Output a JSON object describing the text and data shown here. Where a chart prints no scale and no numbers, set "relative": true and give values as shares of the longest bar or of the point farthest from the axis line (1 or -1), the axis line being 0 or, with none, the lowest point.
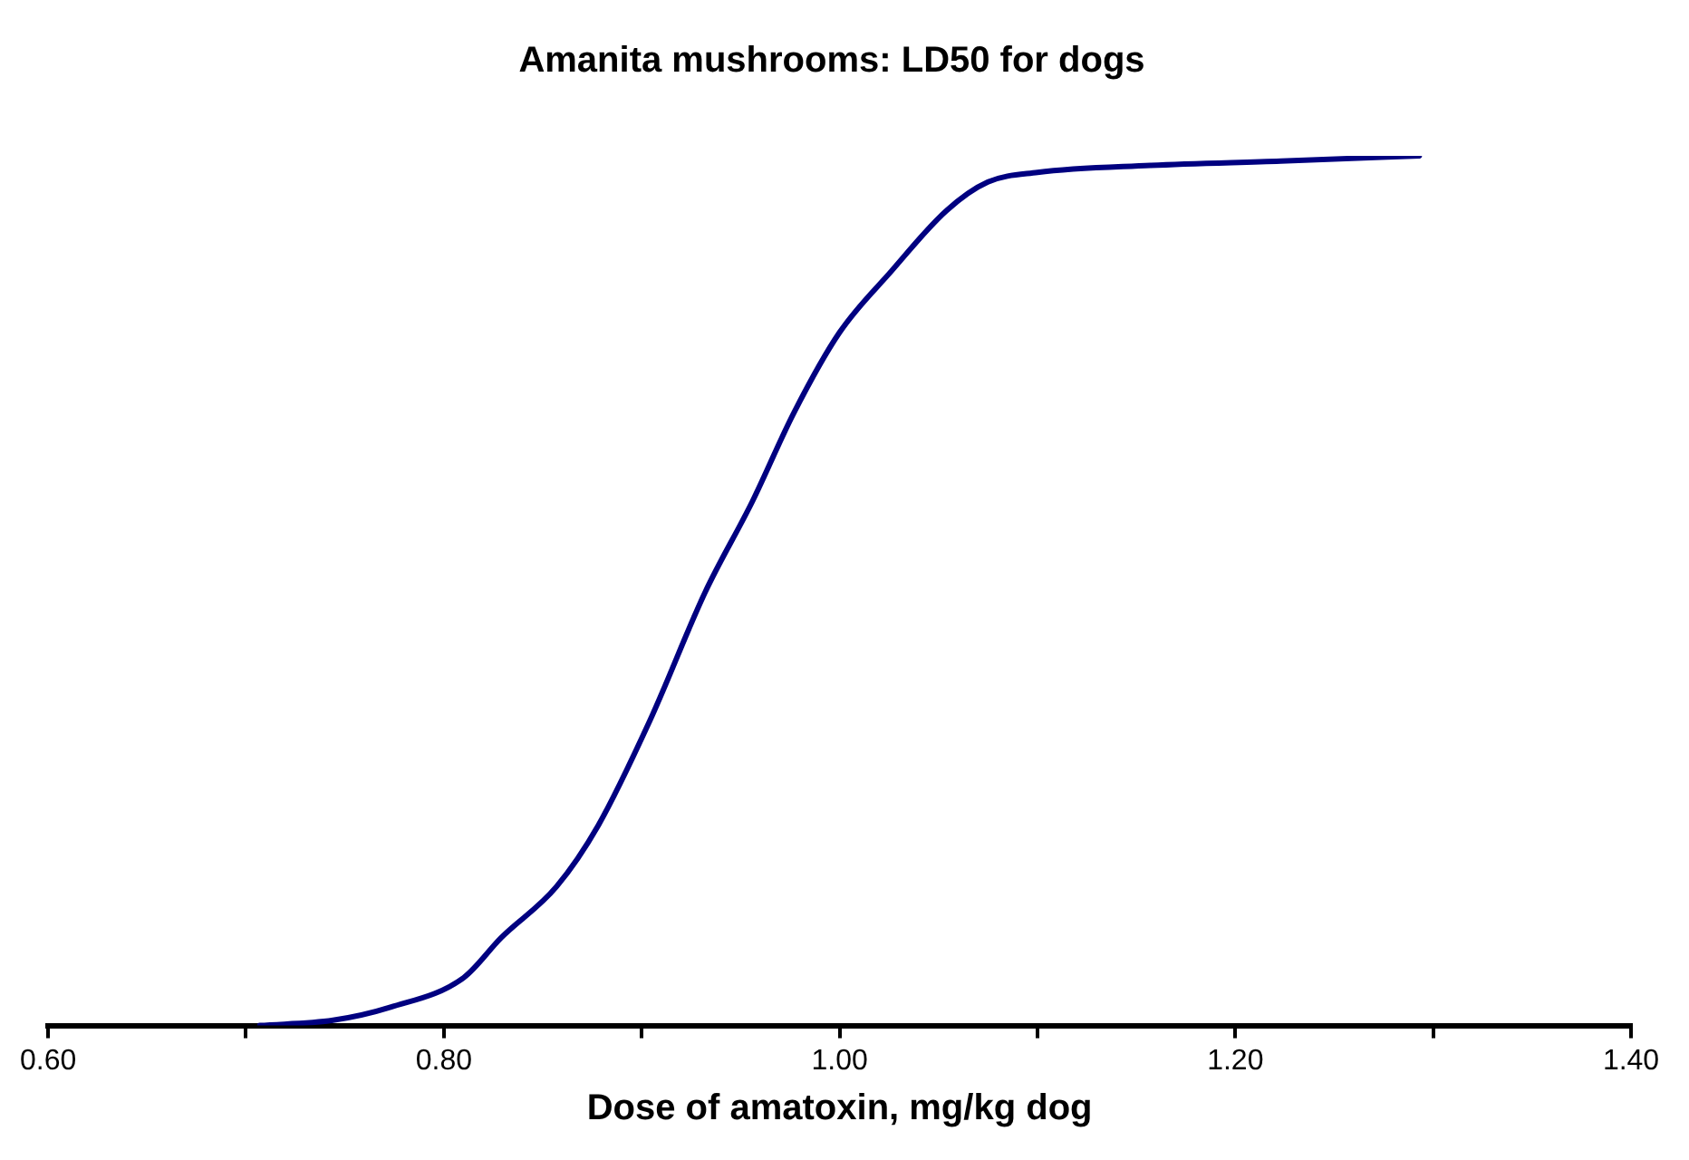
{
  "chart_data": {
    "type": "line",
    "title": "Amanita mushrooms: LD50 for dogs",
    "xlabel": "Dose of amatoxin, mg/kg dog",
    "relative": true,
    "x": [
      0.707,
      0.744,
      0.773,
      0.81,
      0.829,
      0.857,
      0.878,
      0.904,
      0.932,
      0.956,
      0.977,
      1.0,
      1.026,
      1.054,
      1.075,
      1.1,
      1.157,
      1.223,
      1.293
    ],
    "series": [
      {
        "color": "#000080",
        "values": [
          0,
          0.006,
          0.021,
          0.055,
          0.101,
          0.16,
          0.23,
          0.35,
          0.498,
          0.603,
          0.705,
          0.797,
          0.867,
          0.937,
          0.97,
          0.981,
          0.989,
          0.994,
          1.0
        ]
      }
    ],
    "xlim": [
      0.6,
      1.4
    ],
    "xticks": [
      {
        "value": 0.6,
        "label": "0.60"
      },
      {
        "value": 0.7,
        "label": null
      },
      {
        "value": 0.8,
        "label": "0.80"
      },
      {
        "value": 0.9,
        "label": null
      },
      {
        "value": 1.0,
        "label": "1.00"
      },
      {
        "value": 1.1,
        "label": null
      },
      {
        "value": 1.2,
        "label": "1.20"
      },
      {
        "value": 1.3,
        "label": null
      },
      {
        "value": 1.4,
        "label": "1.40"
      }
    ],
    "grid": false,
    "legend": false,
    "marker": "none",
    "line_style": "solid"
  }
}
